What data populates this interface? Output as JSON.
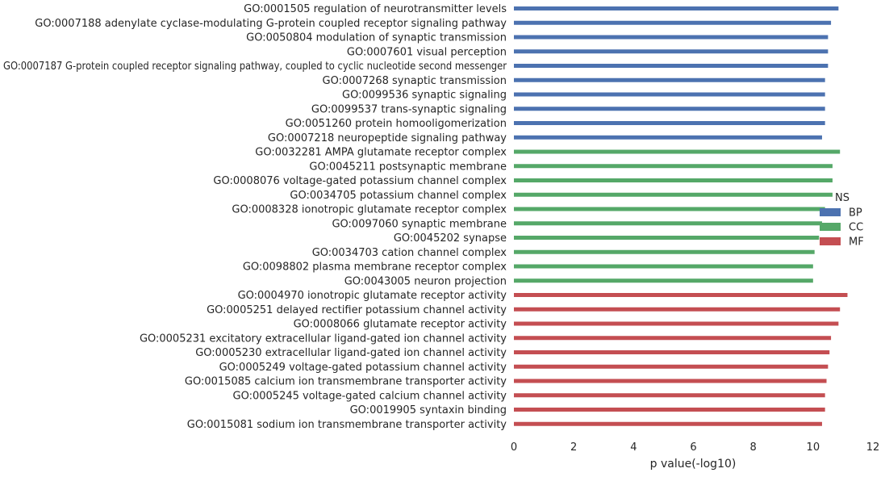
{
  "chart_data": {
    "type": "bar",
    "orientation": "horizontal",
    "xlabel": "p value(-log10)",
    "xlim": [
      0,
      12
    ],
    "xticks": [
      "0",
      "2",
      "4",
      "6",
      "8",
      "10",
      "12"
    ],
    "grid": false,
    "legend": {
      "title": "NS",
      "placement": "right",
      "entries": [
        "BP",
        "CC",
        "MF"
      ]
    },
    "colors": {
      "BP": "#4c72b0",
      "CC": "#55a868",
      "MF": "#c44e52"
    },
    "bars": [
      {
        "label": "GO:0001505 regulation of neurotransmitter levels",
        "value": 10.85,
        "group": "BP"
      },
      {
        "label": "GO:0007188 adenylate cyclase-modulating G-protein coupled receptor signaling pathway",
        "value": 10.6,
        "group": "BP"
      },
      {
        "label": "GO:0050804 modulation of synaptic transmission",
        "value": 10.5,
        "group": "BP"
      },
      {
        "label": "GO:0007601 visual perception",
        "value": 10.5,
        "group": "BP"
      },
      {
        "label": "GO:0007187 G-protein coupled receptor signaling pathway, coupled to cyclic nucleotide second messenger",
        "value": 10.5,
        "group": "BP"
      },
      {
        "label": "GO:0007268 synaptic transmission",
        "value": 10.4,
        "group": "BP"
      },
      {
        "label": "GO:0099536 synaptic signaling",
        "value": 10.4,
        "group": "BP"
      },
      {
        "label": "GO:0099537 trans-synaptic signaling",
        "value": 10.4,
        "group": "BP"
      },
      {
        "label": "GO:0051260 protein homooligomerization",
        "value": 10.4,
        "group": "BP"
      },
      {
        "label": "GO:0007218 neuropeptide signaling pathway",
        "value": 10.3,
        "group": "BP"
      },
      {
        "label": "GO:0032281 AMPA glutamate receptor complex",
        "value": 10.9,
        "group": "CC"
      },
      {
        "label": "GO:0045211 postsynaptic membrane",
        "value": 10.65,
        "group": "CC"
      },
      {
        "label": "GO:0008076 voltage-gated potassium channel complex",
        "value": 10.65,
        "group": "CC"
      },
      {
        "label": "GO:0034705 potassium channel complex",
        "value": 10.65,
        "group": "CC"
      },
      {
        "label": "GO:0008328 ionotropic glutamate receptor complex",
        "value": 10.4,
        "group": "CC"
      },
      {
        "label": "GO:0097060 synaptic membrane",
        "value": 10.3,
        "group": "CC"
      },
      {
        "label": "GO:0045202 synapse",
        "value": 10.2,
        "group": "CC"
      },
      {
        "label": "GO:0034703 cation channel complex",
        "value": 10.05,
        "group": "CC"
      },
      {
        "label": "GO:0098802 plasma membrane receptor complex",
        "value": 10.0,
        "group": "CC"
      },
      {
        "label": "GO:0043005 neuron projection",
        "value": 10.0,
        "group": "CC"
      },
      {
        "label": "GO:0004970 ionotropic glutamate receptor activity",
        "value": 11.15,
        "group": "MF"
      },
      {
        "label": "GO:0005251 delayed rectifier potassium channel activity",
        "value": 10.9,
        "group": "MF"
      },
      {
        "label": "GO:0008066 glutamate receptor activity",
        "value": 10.85,
        "group": "MF"
      },
      {
        "label": "GO:0005231 excitatory extracellular ligand-gated ion channel activity",
        "value": 10.6,
        "group": "MF"
      },
      {
        "label": "GO:0005230 extracellular ligand-gated ion channel activity",
        "value": 10.55,
        "group": "MF"
      },
      {
        "label": "GO:0005249 voltage-gated potassium channel activity",
        "value": 10.5,
        "group": "MF"
      },
      {
        "label": "GO:0015085 calcium ion transmembrane transporter activity",
        "value": 10.45,
        "group": "MF"
      },
      {
        "label": "GO:0005245 voltage-gated calcium channel activity",
        "value": 10.4,
        "group": "MF"
      },
      {
        "label": "GO:0019905 syntaxin binding",
        "value": 10.4,
        "group": "MF"
      },
      {
        "label": "GO:0015081 sodium ion transmembrane transporter activity",
        "value": 10.3,
        "group": "MF"
      }
    ]
  }
}
